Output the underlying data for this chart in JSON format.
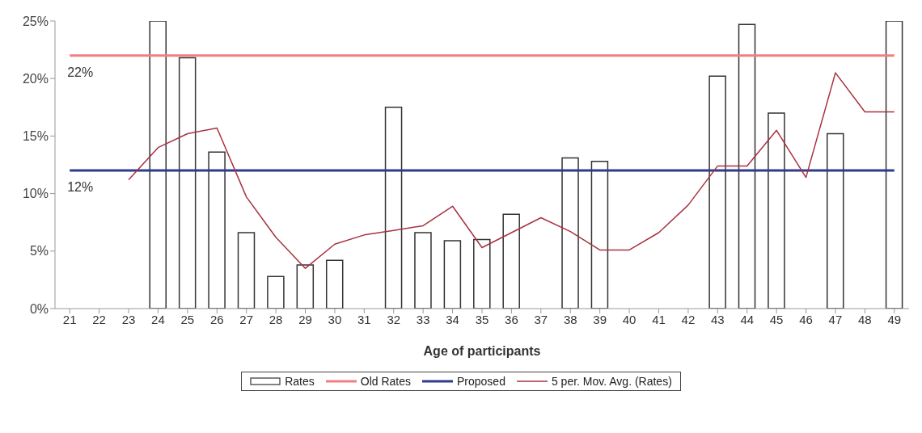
{
  "chart_data": {
    "type": "bar",
    "xlabel": "Age of participants",
    "categories": [
      "21",
      "22",
      "23",
      "24",
      "25",
      "26",
      "27",
      "28",
      "29",
      "30",
      "31",
      "32",
      "33",
      "34",
      "35",
      "36",
      "37",
      "38",
      "39",
      "40",
      "41",
      "42",
      "43",
      "44",
      "45",
      "46",
      "47",
      "48",
      "49"
    ],
    "series": [
      {
        "name": "Rates",
        "color": "#333333",
        "values": [
          null,
          null,
          null,
          25,
          21.8,
          13.6,
          6.6,
          2.8,
          3.8,
          4.2,
          null,
          17.5,
          6.6,
          5.9,
          6.0,
          8.2,
          null,
          13.1,
          12.8,
          null,
          null,
          null,
          20.2,
          24.7,
          17.0,
          null,
          15.2,
          null,
          25
        ]
      },
      {
        "name": "Old Rates",
        "type": "line",
        "color": "#f08080",
        "values": [
          22,
          22,
          22,
          22,
          22,
          22,
          22,
          22,
          22,
          22,
          22,
          22,
          22,
          22,
          22,
          22,
          22,
          22,
          22,
          22,
          22,
          22,
          22,
          22,
          22,
          22,
          22,
          22,
          22
        ]
      },
      {
        "name": "Proposed",
        "type": "line",
        "color": "#2e3a8c",
        "values": [
          12,
          12,
          12,
          12,
          12,
          12,
          12,
          12,
          12,
          12,
          12,
          12,
          12,
          12,
          12,
          12,
          12,
          12,
          12,
          12,
          12,
          12,
          12,
          12,
          12,
          12,
          12,
          12,
          12
        ]
      },
      {
        "name": "5 per. Mov. Avg. (Rates)",
        "type": "line",
        "color": "#a83240",
        "values": [
          null,
          null,
          11.2,
          14.0,
          15.2,
          15.7,
          9.7,
          6.2,
          3.5,
          5.6,
          6.4,
          6.8,
          7.2,
          8.9,
          5.3,
          6.6,
          7.9,
          6.7,
          5.1,
          5.1,
          6.6,
          9.0,
          12.4,
          12.4,
          15.5,
          11.4,
          20.5,
          17.1,
          17.1
        ]
      }
    ],
    "ylim": [
      0,
      25
    ],
    "yticks": [
      {
        "value": 0,
        "label": "0%"
      },
      {
        "value": 5,
        "label": "5%"
      },
      {
        "value": 10,
        "label": "10%"
      },
      {
        "value": 15,
        "label": "15%"
      },
      {
        "value": 20,
        "label": "20%"
      },
      {
        "value": 25,
        "label": "25%"
      }
    ],
    "annotations": [
      {
        "text": "22%",
        "x": "21",
        "y": 22
      },
      {
        "text": "12%",
        "x": "21",
        "y": 12
      }
    ],
    "legend": "bottom",
    "grid": false,
    "marker": "none"
  }
}
